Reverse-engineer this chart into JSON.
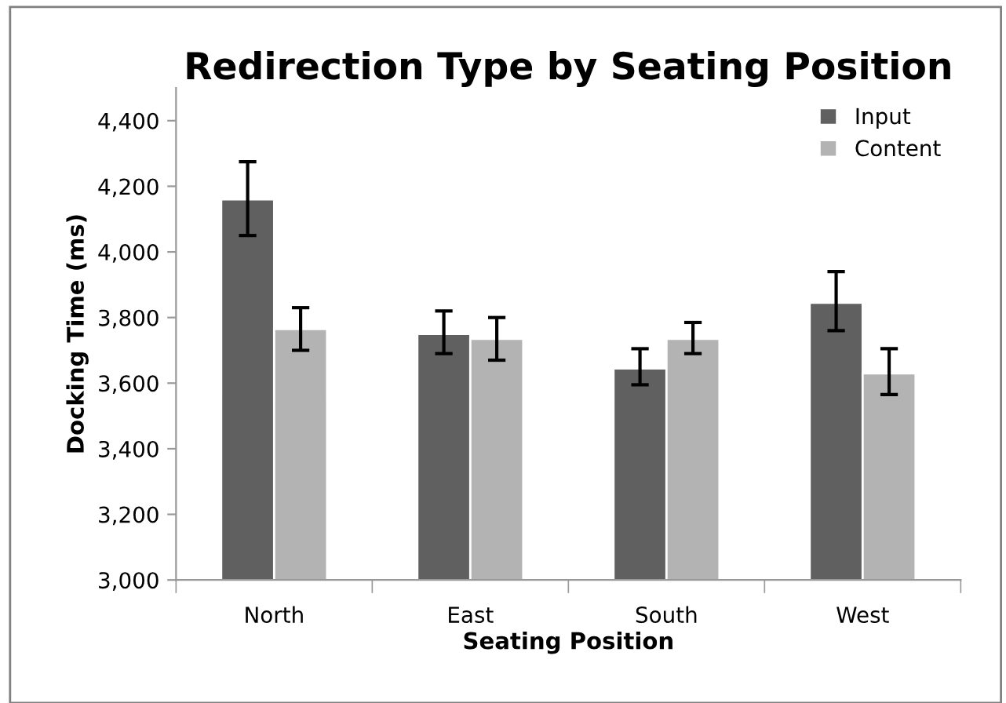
{
  "chart_data": {
    "type": "bar",
    "title": "Redirection Type by Seating Position",
    "xlabel": "Seating Position",
    "ylabel": "Docking Time (ms)",
    "categories": [
      "North",
      "East",
      "South",
      "West"
    ],
    "series": [
      {
        "name": "Input",
        "color": "#606060",
        "values": [
          4160,
          3750,
          3645,
          3845
        ],
        "errors": [
          [
            4050,
            4275
          ],
          [
            3690,
            3820
          ],
          [
            3595,
            3705
          ],
          [
            3760,
            3940
          ]
        ]
      },
      {
        "name": "Content",
        "color": "#b3b3b3",
        "values": [
          3765,
          3735,
          3735,
          3630
        ],
        "errors": [
          [
            3700,
            3830
          ],
          [
            3670,
            3800
          ],
          [
            3690,
            3785
          ],
          [
            3565,
            3705
          ]
        ]
      }
    ],
    "ylim": [
      3000,
      4500
    ],
    "yticks": [
      {
        "value": 3000,
        "label": "3,000"
      },
      {
        "value": 3200,
        "label": "3,200"
      },
      {
        "value": 3400,
        "label": "3,400"
      },
      {
        "value": 3600,
        "label": "3,600"
      },
      {
        "value": 3800,
        "label": "3,800"
      },
      {
        "value": 4000,
        "label": "4,000"
      },
      {
        "value": 4200,
        "label": "4,200"
      },
      {
        "value": 4400,
        "label": "4,400"
      }
    ],
    "grid": false,
    "legend": "top right"
  }
}
